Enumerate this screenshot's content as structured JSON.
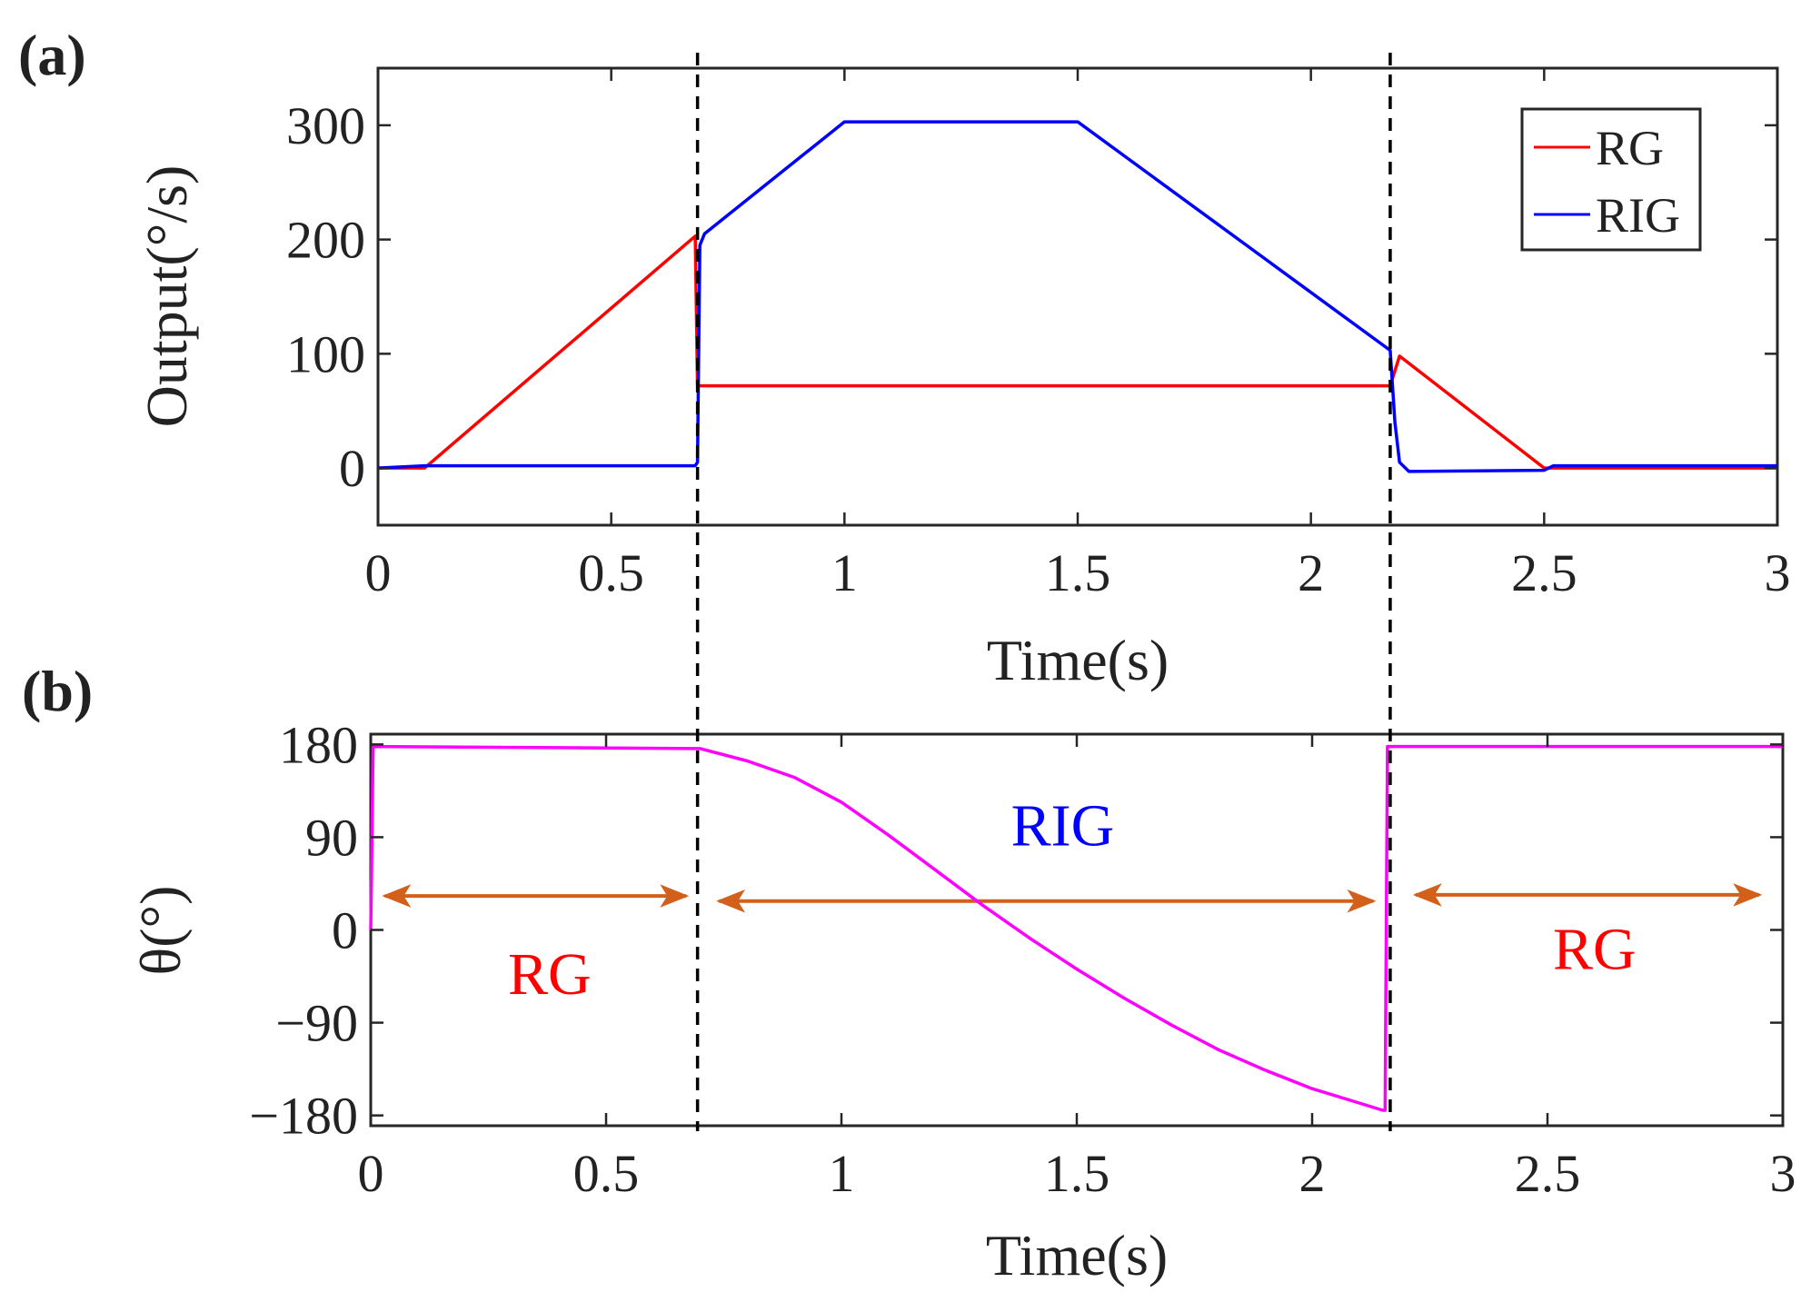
{
  "chart_data": [
    {
      "type": "line",
      "panel_label": "(a)",
      "xlabel": "Time(s)",
      "ylabel": "Output(°/s)",
      "xlim": [
        0,
        3
      ],
      "ylim": [
        -50,
        350
      ],
      "xticks": [
        0,
        0.5,
        1,
        1.5,
        2,
        2.5,
        3
      ],
      "xtick_labels": [
        "0",
        "0.5",
        "1",
        "1.5",
        "2",
        "2.5",
        "3"
      ],
      "yticks": [
        0,
        100,
        200,
        300
      ],
      "ytick_labels": [
        "0",
        "100",
        "200",
        "300"
      ],
      "legend": {
        "position": "top-right",
        "entries": [
          "RG",
          "RIG"
        ]
      },
      "series": [
        {
          "name": "RG",
          "color": "#ff0000",
          "x": [
            0,
            0.1,
            0.68,
            0.68,
            0.685,
            2.17,
            2.17,
            2.19,
            2.5,
            3
          ],
          "y": [
            0,
            0,
            203,
            203,
            72,
            72,
            72,
            98,
            0,
            0
          ]
        },
        {
          "name": "RIG",
          "color": "#0000ff",
          "x": [
            0,
            0.1,
            0.68,
            0.685,
            0.69,
            0.7,
            1.0,
            1.5,
            2.17,
            2.18,
            2.19,
            2.21,
            2.5,
            2.52,
            3
          ],
          "y": [
            0,
            2,
            2,
            5,
            195,
            205,
            303,
            303,
            103,
            40,
            5,
            -3,
            -2,
            2,
            2
          ]
        }
      ]
    },
    {
      "type": "line",
      "panel_label": "(b)",
      "xlabel": "Time(s)",
      "ylabel": "θ(°)",
      "xlim": [
        0,
        3
      ],
      "ylim": [
        -190,
        190
      ],
      "xticks": [
        0,
        0.5,
        1,
        1.5,
        2,
        2.5,
        3
      ],
      "xtick_labels": [
        "0",
        "0.5",
        "1",
        "1.5",
        "2",
        "2.5",
        "3"
      ],
      "yticks": [
        180,
        90,
        0,
        -90,
        -180
      ],
      "ytick_labels": [
        "180",
        "90",
        "0",
        "−90",
        "−180"
      ],
      "series": [
        {
          "name": "θ",
          "color": "#ff00ff",
          "x": [
            0,
            0.005,
            0.7,
            0.8,
            0.9,
            1.0,
            1.1,
            1.2,
            1.3,
            1.4,
            1.5,
            1.6,
            1.7,
            1.8,
            1.9,
            2.0,
            2.1,
            2.15,
            2.155,
            2.16,
            2.5,
            3.0
          ],
          "y": [
            0,
            178,
            176,
            164,
            148,
            124,
            92,
            58,
            24,
            -8,
            -38,
            -66,
            -92,
            -116,
            -136,
            -154,
            -168,
            -175,
            -175,
            178,
            178,
            178
          ]
        }
      ],
      "regions": [
        {
          "label": "RG",
          "label_color": "#ff0000",
          "x_start": 0.03,
          "x_end": 0.67,
          "label_x": 0.38,
          "label_y": -62
        },
        {
          "label": "RIG",
          "label_color": "#0000ff",
          "x_start": 0.74,
          "x_end": 2.13,
          "label_x": 1.47,
          "label_y": 82
        },
        {
          "label": "RG",
          "label_color": "#ff0000",
          "x_start": 2.22,
          "x_end": 2.95,
          "label_x": 2.6,
          "label_y": -38
        }
      ],
      "region_arrow_color": "#d2601a"
    }
  ],
  "vertical_markers": {
    "x": [
      0.685,
      2.17
    ],
    "style": "dashed",
    "color": "#000000"
  }
}
